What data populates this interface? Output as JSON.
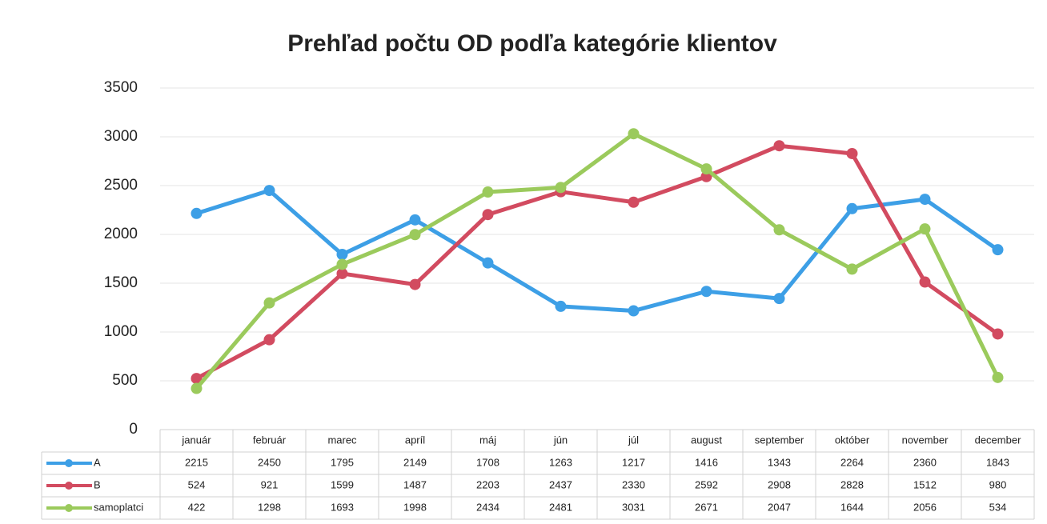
{
  "chart_data": {
    "type": "line",
    "title": "Prehľad počtu OD podľa kategórie klientov",
    "categories": [
      "január",
      "február",
      "marec",
      "apríl",
      "máj",
      "jún",
      "júl",
      "august",
      "september",
      "október",
      "november",
      "december"
    ],
    "series": [
      {
        "name": "A",
        "color": "#3d9fe6",
        "values": [
          2215,
          2450,
          1795,
          2149,
          1708,
          1263,
          1217,
          1416,
          1343,
          2264,
          2360,
          1843
        ]
      },
      {
        "name": "B",
        "color": "#d24b60",
        "values": [
          524,
          921,
          1599,
          1487,
          2203,
          2437,
          2330,
          2592,
          2908,
          2828,
          1512,
          980
        ]
      },
      {
        "name": "samoplatci",
        "color": "#9bca5c",
        "values": [
          422,
          1298,
          1693,
          1998,
          2434,
          2481,
          3031,
          2671,
          2047,
          1644,
          2056,
          534
        ]
      }
    ],
    "ylim": [
      0,
      3500
    ],
    "yticks": [
      0,
      500,
      1000,
      1500,
      2000,
      2500,
      3000,
      3500
    ],
    "grid": true,
    "data_table": true
  }
}
